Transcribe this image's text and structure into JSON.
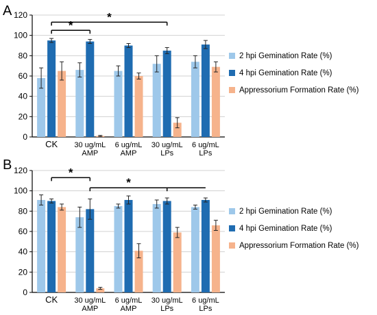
{
  "panels": [
    {
      "label": "A",
      "chart_data": {
        "type": "bar",
        "categories": [
          "CK",
          "30 ug/mL\nAMP",
          "6 ug/mL\nAMP",
          "30 ug/mL\nLPs",
          "6 ug/mL\nLPs"
        ],
        "series": [
          {
            "name": "2 hpi Gemination Rate (%)",
            "color": "#9ec8ea",
            "values": [
              58,
              66,
              65,
              72,
              74
            ],
            "errors": [
              10,
              7,
              5,
              8,
              6
            ]
          },
          {
            "name": "4 hpi Gemination Rate (%)",
            "color": "#1f6cb1",
            "values": [
              95,
              94,
              90,
              85,
              91
            ],
            "errors": [
              2,
              2,
              2,
              3,
              4
            ]
          },
          {
            "name": "Appressorium Formation Rate (%)",
            "color": "#f6b38c",
            "values": [
              65,
              1,
              60,
              14,
              69
            ],
            "errors": [
              9,
              0.5,
              3,
              5,
              5
            ]
          }
        ],
        "ylim": [
          0,
          120
        ],
        "yticks": [
          0,
          20,
          40,
          60,
          80,
          100,
          120
        ],
        "legend": "right",
        "annotations": [
          {
            "text": "*",
            "from_category": 0,
            "to_category": 1,
            "level": 105
          },
          {
            "text": "*",
            "from_category": 0,
            "to_category": 3,
            "level": 113
          }
        ]
      }
    },
    {
      "label": "B",
      "chart_data": {
        "type": "bar",
        "categories": [
          "CK",
          "30 ug/mL\nAMP",
          "6 ug/mL\nAMP",
          "30 ug/mL\nLPs",
          "6 ug/mL\nLPs"
        ],
        "series": [
          {
            "name": "2 hpi Gemination Rate (%)",
            "color": "#9ec8ea",
            "values": [
              91,
              74,
              85,
              87,
              84
            ],
            "errors": [
              5,
              10,
              2,
              4,
              2
            ]
          },
          {
            "name": "4 hpi Gemination Rate (%)",
            "color": "#1f6cb1",
            "values": [
              90,
              82,
              91,
              90,
              91
            ],
            "errors": [
              2,
              10,
              4,
              3,
              2
            ]
          },
          {
            "name": "Appressorium Formation Rate (%)",
            "color": "#f6b38c",
            "values": [
              84,
              4,
              41,
              59,
              66
            ],
            "errors": [
              3,
              1,
              7,
              5,
              5
            ]
          }
        ],
        "ylim": [
          0,
          120
        ],
        "yticks": [
          0,
          20,
          40,
          60,
          80,
          100,
          120
        ],
        "legend": "right",
        "annotations": [
          {
            "text": "*",
            "from_category": 0,
            "to_category": 1,
            "level": 113
          },
          {
            "text": "*",
            "from_category": 1,
            "to_category": 4,
            "level": 103,
            "tick_category": 3
          }
        ]
      }
    }
  ]
}
